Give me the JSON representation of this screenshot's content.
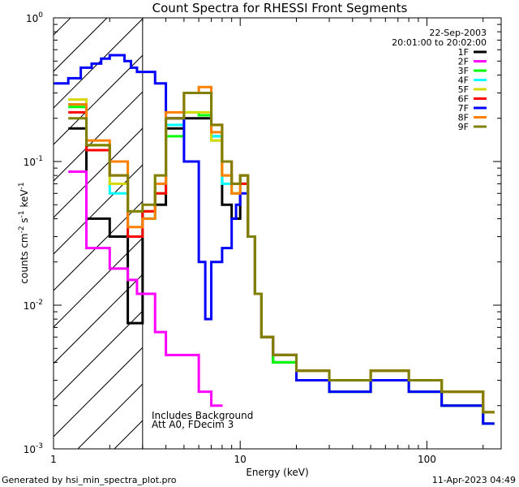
{
  "chart_data": {
    "type": "line",
    "title": "Count Spectra for RHESSI Front Segments",
    "xlabel": "Energy (keV)",
    "ylabel": "counts cm^-2 s^-1 keV^-1",
    "xscale": "log",
    "yscale": "log",
    "xlim": [
      1,
      250
    ],
    "ylim": [
      0.001,
      1
    ],
    "x_ticks": [
      {
        "value": 1,
        "label": "1"
      },
      {
        "value": 10,
        "label": "10"
      },
      {
        "value": 100,
        "label": "100"
      }
    ],
    "y_ticks": [
      {
        "value": 0.001,
        "base": "10",
        "exp": "-3"
      },
      {
        "value": 0.01,
        "base": "10",
        "exp": "-2"
      },
      {
        "value": 0.1,
        "base": "10",
        "exp": "-1"
      },
      {
        "value": 1,
        "base": "10",
        "exp": "0"
      }
    ],
    "date": "22-Sep-2003",
    "time_range": "20:01:00 to 20:02:00",
    "hatched_region_upper_energy": 3,
    "notes": [
      "Includes Background",
      "Att A0, FDecim 3"
    ],
    "legend_position": "top-right",
    "grid": false,
    "series": [
      {
        "name": "1F",
        "color": "#000000",
        "x": [
          1.2,
          1.5,
          2.0,
          2.5,
          3.0,
          3.5,
          4.0,
          5.0,
          6.0,
          7.0,
          8.0,
          9.0,
          10.0,
          11.0,
          12.0,
          13.0,
          15.0,
          20.0,
          30.0,
          50.0,
          80.0,
          120.0,
          200.0
        ],
        "y": [
          0.17,
          0.04,
          0.03,
          0.0075,
          0.045,
          0.05,
          0.17,
          0.2,
          0.2,
          0.15,
          0.05,
          0.04,
          0.08,
          0.03,
          0.012,
          0.006,
          0.004,
          0.003,
          0.0025,
          0.003,
          0.0025,
          0.002,
          0.0015
        ]
      },
      {
        "name": "2F",
        "color": "#ff00ff",
        "x": [
          1.2,
          1.5,
          2.0,
          2.5,
          2.8,
          3.0,
          3.5,
          4.0,
          4.5,
          5.0,
          6.0,
          7.0
        ],
        "y": [
          0.085,
          0.025,
          0.018,
          0.015,
          0.012,
          0.012,
          0.0065,
          0.0045,
          0.0045,
          0.0045,
          0.0025,
          0.002
        ]
      },
      {
        "name": "3F",
        "color": "#00ff00",
        "x": [
          1.2,
          1.5,
          2.0,
          2.5,
          3.0,
          3.5,
          4.0,
          5.0,
          6.0,
          7.0,
          8.0,
          9.0,
          10.0,
          11.0,
          12.0,
          13.0,
          15.0,
          20.0,
          30.0,
          50.0,
          80.0,
          120.0,
          200.0
        ],
        "y": [
          0.24,
          0.13,
          0.1,
          0.03,
          0.04,
          0.06,
          0.15,
          0.22,
          0.21,
          0.14,
          0.08,
          0.06,
          0.07,
          0.03,
          0.012,
          0.006,
          0.004,
          0.003,
          0.0025,
          0.003,
          0.0025,
          0.002,
          0.0015
        ]
      },
      {
        "name": "4F",
        "color": "#00ffff",
        "x": [
          1.2,
          1.5,
          2.0,
          2.5,
          3.0,
          3.5,
          4.0,
          5.0,
          6.0,
          7.0,
          8.0,
          9.0,
          10.0,
          11.0,
          12.0,
          13.0,
          15.0,
          20.0,
          30.0,
          50.0,
          80.0,
          120.0,
          200.0
        ],
        "y": [
          0.25,
          0.12,
          0.06,
          0.03,
          0.04,
          0.07,
          0.18,
          0.3,
          0.3,
          0.15,
          0.07,
          0.06,
          0.07,
          0.03,
          0.012,
          0.006,
          0.0045,
          0.0035,
          0.003,
          0.0035,
          0.003,
          0.0025,
          0.0018
        ]
      },
      {
        "name": "5F",
        "color": "#d8d800",
        "x": [
          1.2,
          1.5,
          2.0,
          2.5,
          3.0,
          3.5,
          4.0,
          5.0,
          6.0,
          7.0,
          8.0,
          9.0,
          10.0,
          11.0,
          12.0,
          13.0,
          15.0,
          20.0,
          30.0,
          50.0,
          80.0,
          120.0,
          200.0
        ],
        "y": [
          0.27,
          0.13,
          0.07,
          0.045,
          0.045,
          0.08,
          0.2,
          0.22,
          0.22,
          0.14,
          0.08,
          0.06,
          0.07,
          0.03,
          0.012,
          0.006,
          0.0045,
          0.0035,
          0.003,
          0.0035,
          0.003,
          0.0025,
          0.0018
        ]
      },
      {
        "name": "6F",
        "color": "#ff0000",
        "x": [
          1.2,
          1.5,
          2.0,
          2.5,
          3.0,
          3.5,
          4.0,
          5.0,
          6.0,
          7.0,
          8.0,
          9.0,
          10.0,
          11.0,
          12.0,
          13.0,
          15.0,
          20.0,
          30.0,
          50.0,
          80.0,
          120.0,
          200.0
        ],
        "y": [
          0.22,
          0.12,
          0.08,
          0.03,
          0.045,
          0.06,
          0.2,
          0.3,
          0.3,
          0.18,
          0.1,
          0.07,
          0.07,
          0.03,
          0.012,
          0.006,
          0.0045,
          0.0035,
          0.003,
          0.0035,
          0.003,
          0.0025,
          0.0018
        ]
      },
      {
        "name": "7F",
        "color": "#0000ff",
        "x": [
          1.0,
          1.2,
          1.4,
          1.6,
          1.8,
          2.0,
          2.2,
          2.4,
          2.6,
          2.8,
          3.0,
          3.5,
          4.0,
          5.0,
          6.0,
          6.5,
          7.0,
          8.0,
          9.0,
          9.5,
          10.0,
          11.0,
          12.0,
          13.0,
          15.0,
          20.0,
          30.0,
          50.0,
          80.0,
          120.0,
          200.0
        ],
        "y": [
          0.35,
          0.38,
          0.45,
          0.48,
          0.52,
          0.55,
          0.55,
          0.5,
          0.45,
          0.42,
          0.42,
          0.35,
          0.2,
          0.1,
          0.02,
          0.008,
          0.02,
          0.025,
          0.04,
          0.05,
          0.06,
          0.03,
          0.012,
          0.006,
          0.0045,
          0.003,
          0.0025,
          0.003,
          0.0025,
          0.002,
          0.0015
        ]
      },
      {
        "name": "8F",
        "color": "#ff8000",
        "x": [
          1.2,
          1.5,
          2.0,
          2.5,
          3.0,
          3.5,
          4.0,
          5.0,
          6.0,
          7.0,
          8.0,
          9.0,
          10.0,
          11.0,
          12.0,
          13.0,
          15.0,
          20.0,
          30.0,
          50.0,
          80.0,
          120.0,
          200.0
        ],
        "y": [
          0.25,
          0.14,
          0.1,
          0.035,
          0.04,
          0.07,
          0.22,
          0.3,
          0.33,
          0.16,
          0.08,
          0.06,
          0.08,
          0.03,
          0.012,
          0.006,
          0.0045,
          0.0035,
          0.003,
          0.0035,
          0.003,
          0.0025,
          0.0018
        ]
      },
      {
        "name": "9F",
        "color": "#808000",
        "x": [
          1.2,
          1.5,
          2.0,
          2.5,
          3.0,
          3.5,
          4.0,
          5.0,
          6.0,
          7.0,
          8.0,
          9.0,
          10.0,
          11.0,
          12.0,
          13.0,
          15.0,
          20.0,
          30.0,
          50.0,
          80.0,
          120.0,
          200.0
        ],
        "y": [
          0.2,
          0.13,
          0.08,
          0.045,
          0.05,
          0.08,
          0.2,
          0.3,
          0.3,
          0.18,
          0.1,
          0.07,
          0.08,
          0.03,
          0.012,
          0.006,
          0.0045,
          0.0035,
          0.003,
          0.0035,
          0.003,
          0.0025,
          0.0018
        ]
      }
    ]
  },
  "footer": {
    "generator": "Generated by hsi_min_spectra_plot.pro",
    "timestamp": "11-Apr-2023 04:49"
  }
}
